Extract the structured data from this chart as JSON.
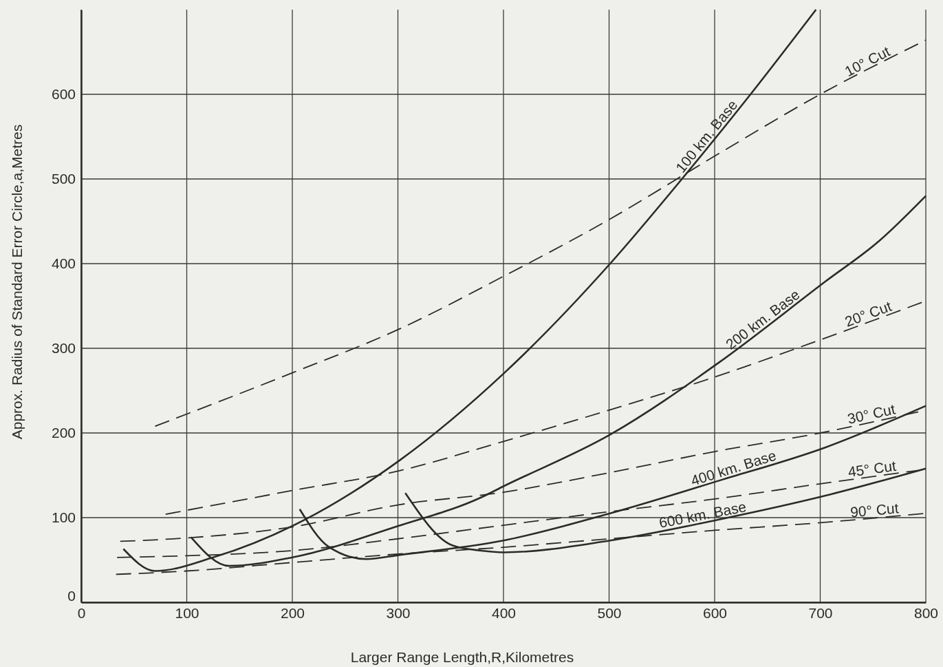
{
  "chart_data": {
    "type": "line",
    "xlabel": "Larger Range Length,R,Kilometres",
    "ylabel": "Approx. Radius of Standard Error Circle,a,Metres",
    "xlim": [
      0,
      800
    ],
    "xticks": [
      0,
      100,
      200,
      300,
      400,
      500,
      600,
      700,
      800
    ],
    "ylim": [
      0,
      700
    ],
    "yticks": [
      0,
      100,
      200,
      300,
      400,
      500,
      600
    ],
    "grid": true,
    "legend": false,
    "marker": "none",
    "series": [
      {
        "name": "100 km. Base",
        "color": "#2b2b2b",
        "line_style": "solid",
        "x": [
          40,
          70,
          125,
          211,
          302,
          400,
          501,
          569,
          634,
          696
        ],
        "values": [
          63,
          37,
          53,
          97,
          168,
          270,
          400,
          500,
          600,
          700
        ]
      },
      {
        "name": "200 km. Base",
        "color": "#2b2b2b",
        "line_style": "solid",
        "x": [
          104,
          140,
          200,
          300,
          379,
          400,
          501,
          605,
          705,
          756,
          800
        ],
        "values": [
          77,
          43,
          53,
          90,
          124,
          137,
          198,
          284,
          379,
          427,
          480
        ]
      },
      {
        "name": "400 km. Base",
        "color": "#2b2b2b",
        "line_style": "solid",
        "x": [
          207,
          234,
          270,
          302,
          400,
          501,
          605,
          705,
          800
        ],
        "values": [
          110,
          66,
          51,
          56,
          73,
          105,
          144,
          183,
          232
        ]
      },
      {
        "name": "600 km. Base",
        "color": "#2b2b2b",
        "line_style": "solid",
        "x": [
          307,
          352,
          379,
          400,
          501,
          605,
          705,
          800
        ],
        "values": [
          129,
          67,
          61,
          59,
          73,
          98,
          126,
          158
        ]
      },
      {
        "name": "10° Cut",
        "color": "#2b2b2b",
        "line_style": "dashed",
        "x": [
          70,
          200,
          300,
          400,
          500,
          600,
          700,
          800
        ],
        "values": [
          208,
          271,
          322,
          385,
          452,
          527,
          600,
          664
        ]
      },
      {
        "name": "20° Cut",
        "color": "#2b2b2b",
        "line_style": "dashed",
        "x": [
          80,
          200,
          300,
          400,
          500,
          600,
          700,
          800
        ],
        "values": [
          104,
          132,
          155,
          190,
          227,
          266,
          310,
          356
        ]
      },
      {
        "name": "30° Cut",
        "color": "#2b2b2b",
        "line_style": "dashed",
        "x": [
          37,
          100,
          200,
          300,
          400,
          500,
          600,
          700,
          800
        ],
        "values": [
          72,
          76,
          89,
          115,
          130,
          153,
          178,
          200,
          227
        ]
      },
      {
        "name": "45° Cut",
        "color": "#2b2b2b",
        "line_style": "dashed",
        "x": [
          34,
          100,
          200,
          300,
          400,
          500,
          600,
          700,
          800
        ],
        "values": [
          53,
          55,
          61,
          75,
          91,
          107,
          122,
          140,
          157
        ]
      },
      {
        "name": "90° Cut",
        "color": "#2b2b2b",
        "line_style": "dashed",
        "x": [
          33,
          100,
          200,
          300,
          400,
          500,
          600,
          700,
          800
        ],
        "values": [
          33,
          37,
          47,
          57,
          65,
          75,
          85,
          94,
          105
        ]
      }
    ]
  }
}
